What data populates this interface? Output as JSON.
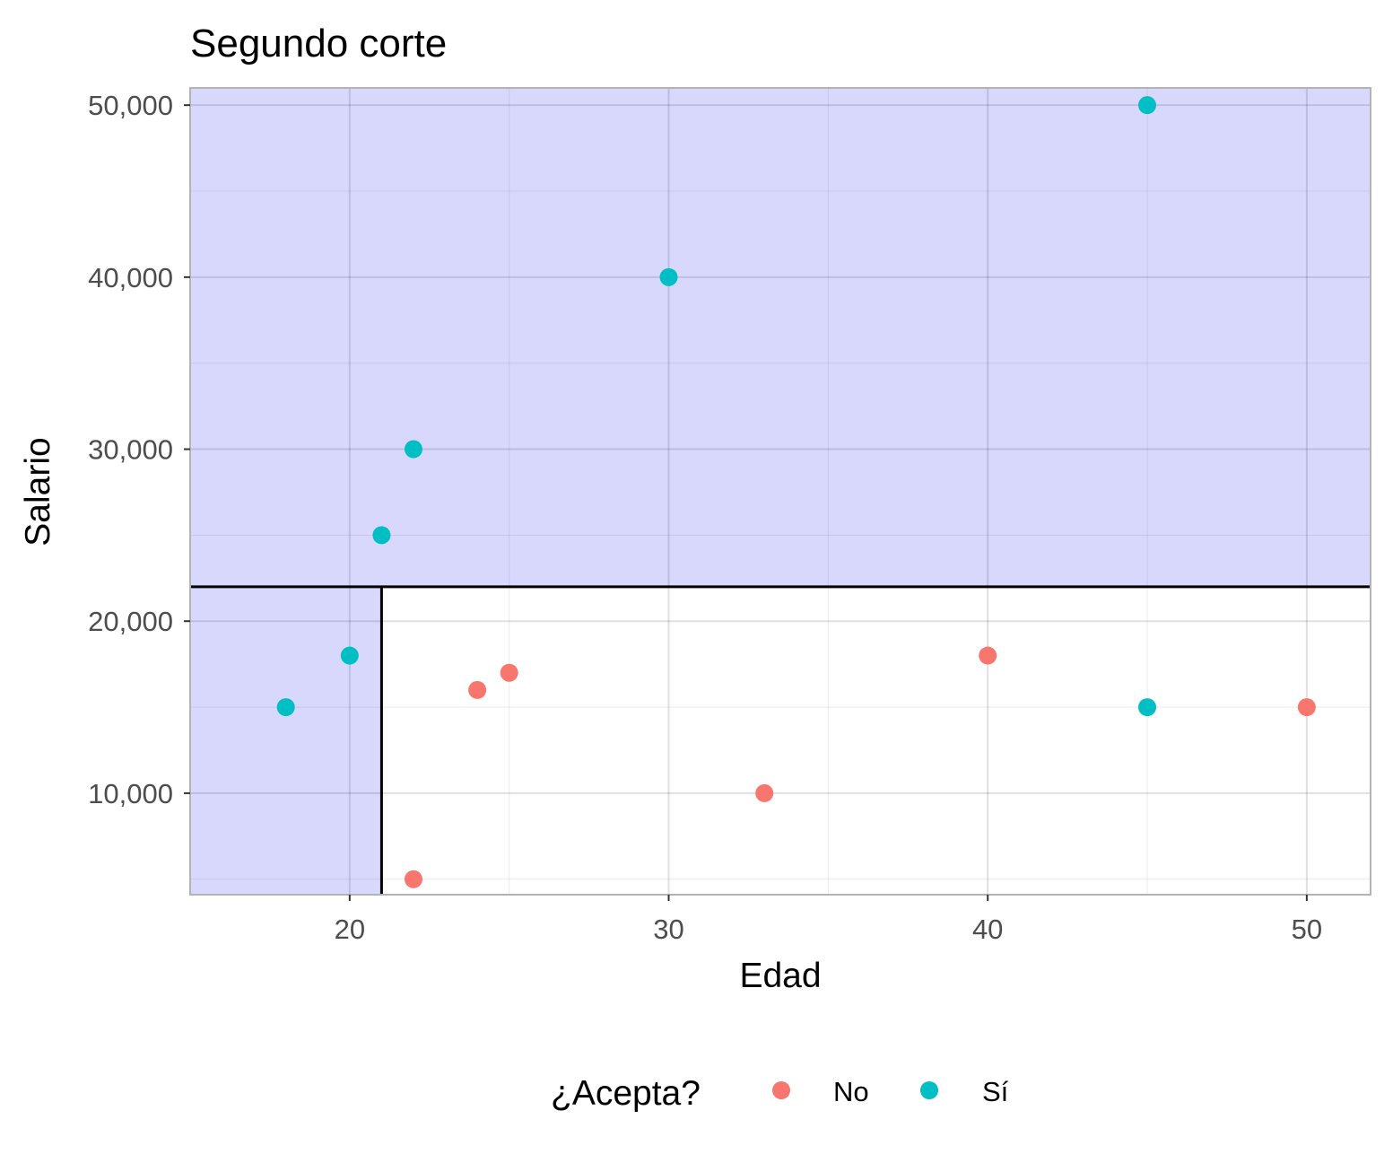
{
  "chart_data": {
    "type": "scatter",
    "title": "Segundo corte",
    "xlabel": "Edad",
    "ylabel": "Salario",
    "xlim": [
      15,
      52
    ],
    "ylim": [
      4100,
      51000
    ],
    "x_ticks": [
      20,
      30,
      40,
      50
    ],
    "x_tick_labels": [
      "20",
      "30",
      "40",
      "50"
    ],
    "y_ticks": [
      10000,
      20000,
      30000,
      40000,
      50000
    ],
    "y_tick_labels": [
      "10,000",
      "20,000",
      "30,000",
      "40,000",
      "50,000"
    ],
    "grid": true,
    "legend": {
      "title": "¿Acepta?",
      "position": "bottom",
      "entries": [
        {
          "label": "No",
          "color": "#F8766D"
        },
        {
          "label": "Sí",
          "color": "#00BFC4"
        }
      ]
    },
    "series": [
      {
        "name": "No",
        "color": "#F8766D",
        "points": [
          {
            "x": 22,
            "y": 5000
          },
          {
            "x": 24,
            "y": 16000
          },
          {
            "x": 25,
            "y": 17000
          },
          {
            "x": 33,
            "y": 10000
          },
          {
            "x": 40,
            "y": 18000
          },
          {
            "x": 50,
            "y": 15000
          }
        ]
      },
      {
        "name": "Sí",
        "color": "#00BFC4",
        "points": [
          {
            "x": 18,
            "y": 15000
          },
          {
            "x": 20,
            "y": 18000
          },
          {
            "x": 21,
            "y": 25000
          },
          {
            "x": 22,
            "y": 30000
          },
          {
            "x": 30,
            "y": 40000
          },
          {
            "x": 45,
            "y": 50000
          },
          {
            "x": 45,
            "y": 15000
          }
        ]
      }
    ],
    "split_lines": [
      {
        "orientation": "horizontal",
        "y": 22000
      },
      {
        "orientation": "vertical",
        "x": 21,
        "y_max": 22000
      }
    ],
    "shaded_regions": [
      {
        "x": [
          15,
          52
        ],
        "y": [
          22000,
          51000
        ],
        "color": "#d8d8fd"
      },
      {
        "x": [
          15,
          21
        ],
        "y": [
          4100,
          22000
        ],
        "color": "#d8d8fd"
      }
    ]
  }
}
